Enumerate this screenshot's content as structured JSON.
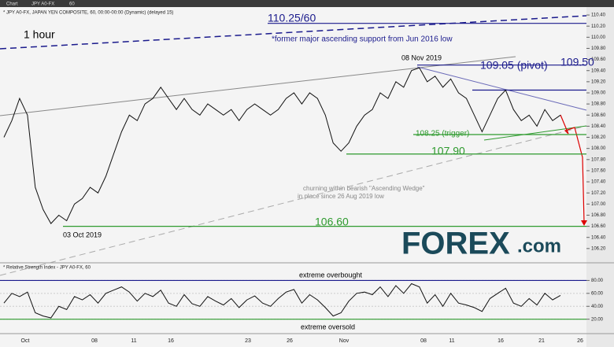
{
  "toolbar": {
    "label": "Chart",
    "interval": "60"
  },
  "logo": {
    "main": "FOREX",
    "suffix": ".com"
  },
  "chart_data": [
    {
      "type": "line",
      "title": "1 hour",
      "subtitle": "* JPY A0-FX, JAPAN YEN COMPOSITE, 60, 00:00-00:00 (Dynamic) (delayed 15)",
      "series": [
        {
          "name": "JPY A0-FX",
          "color": "#111111",
          "values": [
            108.2,
            108.5,
            108.9,
            108.6,
            107.3,
            106.9,
            106.65,
            106.8,
            106.7,
            107.0,
            107.1,
            107.3,
            107.2,
            107.5,
            107.9,
            108.3,
            108.6,
            108.5,
            108.8,
            108.9,
            109.1,
            108.9,
            108.7,
            108.9,
            108.7,
            108.6,
            108.8,
            108.7,
            108.6,
            108.7,
            108.5,
            108.7,
            108.8,
            108.7,
            108.6,
            108.7,
            108.9,
            109.0,
            108.8,
            109.0,
            108.9,
            108.6,
            108.1,
            107.95,
            108.1,
            108.4,
            108.6,
            108.7,
            109.0,
            108.9,
            109.2,
            109.1,
            109.4,
            109.45,
            109.2,
            109.3,
            109.1,
            109.25,
            109.0,
            108.9,
            108.6,
            108.3,
            108.6,
            108.9,
            109.05,
            108.7,
            108.5,
            108.6,
            108.4,
            108.7,
            108.5,
            108.6
          ]
        }
      ],
      "ylim": [
        106.0,
        110.5
      ],
      "yticks": [
        {
          "value": 106.2,
          "label": "106.20"
        },
        {
          "value": 106.4,
          "label": "106.40"
        },
        {
          "value": 106.6,
          "label": "106.60"
        },
        {
          "value": 106.8,
          "label": "106.80"
        },
        {
          "value": 107.0,
          "label": "107.00"
        },
        {
          "value": 107.2,
          "label": "107.20"
        },
        {
          "value": 107.4,
          "label": "107.40"
        },
        {
          "value": 107.6,
          "label": "107.60"
        },
        {
          "value": 107.8,
          "label": "107.80"
        },
        {
          "value": 108.0,
          "label": "108.00"
        },
        {
          "value": 108.2,
          "label": "108.20"
        },
        {
          "value": 108.4,
          "label": "108.40"
        },
        {
          "value": 108.6,
          "label": "108.60"
        },
        {
          "value": 108.8,
          "label": "108.80"
        },
        {
          "value": 109.0,
          "label": "109.00"
        },
        {
          "value": 109.2,
          "label": "109.20"
        },
        {
          "value": 109.4,
          "label": "109.40"
        },
        {
          "value": 109.6,
          "label": "109.60"
        },
        {
          "value": 109.8,
          "label": "109.80"
        },
        {
          "value": 110.0,
          "label": "110.00"
        },
        {
          "value": 110.2,
          "label": "110.20"
        },
        {
          "value": 110.4,
          "label": "110.40"
        }
      ],
      "levels": [
        {
          "value": 110.25,
          "label": "110.25/60",
          "color": "#1a1a8c"
        },
        {
          "value": 109.5,
          "label": "109.50",
          "color": "#1a1a8c"
        },
        {
          "value": 109.05,
          "label": "109.05 (pivot)",
          "color": "#1a1a8c"
        },
        {
          "value": 108.25,
          "label": "108.25 (trigger)",
          "color": "#2e9a2e"
        },
        {
          "value": 107.9,
          "label": "107.90",
          "color": "#2e9a2e"
        },
        {
          "value": 106.6,
          "label": "106.60",
          "color": "#2e9a2e"
        }
      ],
      "notes": {
        "support": "*former major ascending support from Jun 2016 low",
        "wedge": "churning within bearish \"Ascending Wedge\"",
        "wedge2": "in place since 26 Aug 2019 low",
        "high": "08 Nov 2019",
        "low": "03 Oct 2019"
      },
      "x_labels": [
        "Oct",
        "08",
        "11",
        "16",
        "23",
        "26",
        "Nov",
        "08",
        "11",
        "16",
        "21",
        "26"
      ]
    },
    {
      "type": "line",
      "title": "* Relative Strength Index - JPY A0-FX, 60",
      "series": [
        {
          "name": "RSI",
          "color": "#111111",
          "values": [
            45,
            60,
            55,
            62,
            30,
            25,
            22,
            40,
            35,
            55,
            50,
            58,
            45,
            60,
            65,
            70,
            62,
            48,
            60,
            55,
            65,
            45,
            40,
            58,
            44,
            40,
            55,
            48,
            42,
            52,
            38,
            50,
            56,
            45,
            40,
            52,
            62,
            66,
            45,
            58,
            50,
            38,
            25,
            30,
            48,
            60,
            62,
            58,
            70,
            55,
            72,
            60,
            75,
            70,
            45,
            58,
            40,
            60,
            45,
            42,
            38,
            32,
            52,
            60,
            68,
            45,
            40,
            52,
            42,
            60,
            50,
            56.93
          ]
        }
      ],
      "ylim": [
        5,
        100
      ],
      "yticks": [
        {
          "value": 20,
          "label": "20.00"
        },
        {
          "value": 40,
          "label": "40.00"
        },
        {
          "value": 60,
          "label": "60.00"
        },
        {
          "value": 80,
          "label": "80.00"
        }
      ],
      "levels": [
        {
          "value": 80,
          "label": "extreme overbought",
          "color": "#1a1a8c"
        },
        {
          "value": 20,
          "label": "extreme oversold",
          "color": "#2e9a2e"
        }
      ]
    }
  ]
}
